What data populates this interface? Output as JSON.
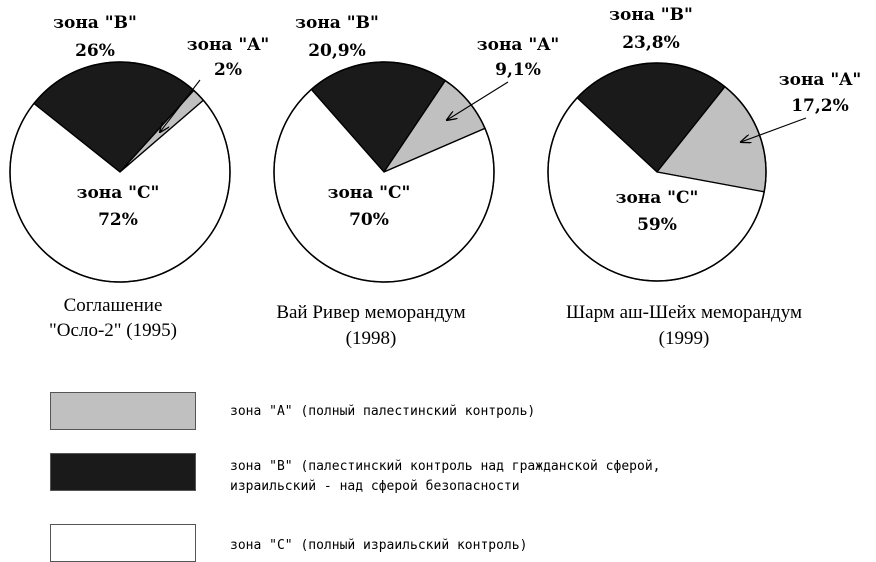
{
  "chart_data": [
    {
      "type": "pie",
      "categories": [
        "зона \"A\"",
        "зона \"B\"",
        "зона \"C\""
      ],
      "values": [
        2,
        26,
        72
      ],
      "value_labels": [
        "2%",
        "26%",
        "72%"
      ],
      "caption": [
        "Соглашение",
        "\"Осло-2\" (1995)"
      ],
      "colors": [
        "#c0c0c0",
        "#1a1a1a",
        "#ffffff"
      ]
    },
    {
      "type": "pie",
      "categories": [
        "зона \"A\"",
        "зона \"B\"",
        "зона \"C\""
      ],
      "values": [
        9.1,
        20.9,
        70
      ],
      "value_labels": [
        "9,1%",
        "20,9%",
        "70%"
      ],
      "caption": [
        "Вай Ривер меморандум",
        "(1998)"
      ],
      "colors": [
        "#c0c0c0",
        "#1a1a1a",
        "#ffffff"
      ]
    },
    {
      "type": "pie",
      "categories": [
        "зона \"A\"",
        "зона \"B\"",
        "зона \"C\""
      ],
      "values": [
        17.2,
        23.8,
        59
      ],
      "value_labels": [
        "17,2%",
        "23,8%",
        "59%"
      ],
      "caption": [
        "Шарм аш-Шейх меморандум",
        "(1999)"
      ],
      "colors": [
        "#c0c0c0",
        "#1a1a1a",
        "#ffffff"
      ]
    }
  ],
  "legend": [
    {
      "color": "#c0c0c0",
      "lines": [
        "зона \"А\" (полный палестинский контроль)"
      ]
    },
    {
      "color": "#1a1a1a",
      "lines": [
        "зона \"В\" (палестинский контроль над гражданской сферой,",
        "израильский - над сферой безопасности"
      ]
    },
    {
      "color": "#ffffff",
      "lines": [
        "зона \"С\" (полный израильский контроль)"
      ]
    }
  ]
}
